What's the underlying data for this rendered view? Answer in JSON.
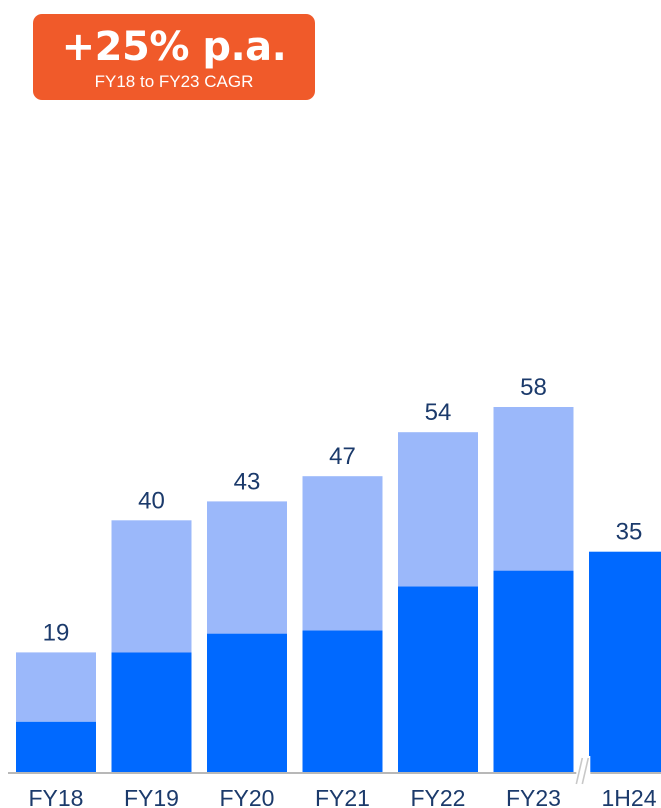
{
  "badge": {
    "headline": "+25% p.a.",
    "subtitle": "FY18 to FY23 CAGR",
    "color": "#F05A2A"
  },
  "colors": {
    "lower_segment": "#0069FF",
    "upper_segment": "#9BB8FA",
    "value_label": "#1B3A6B",
    "tick_label": "#1B3A6B",
    "axis": "#B8B8B8",
    "break_mark": "#C8C8C8"
  },
  "chart_data": {
    "type": "bar",
    "stacked": true,
    "categories": [
      "FY18",
      "FY19",
      "FY20",
      "FY21",
      "FY22",
      "FY23",
      "1H24"
    ],
    "totals": [
      19,
      40,
      43,
      47,
      54,
      58,
      35
    ],
    "series": [
      {
        "values": [
          8,
          19,
          22,
          22.5,
          29.5,
          32,
          35
        ]
      },
      {
        "values": [
          11,
          21,
          21,
          24.5,
          24.5,
          26,
          0
        ]
      }
    ],
    "axis_break_after": "FY23",
    "ylim": [
      0,
      58
    ],
    "grid": false,
    "legend": "none",
    "title": "",
    "xlabel": "",
    "ylabel": ""
  }
}
